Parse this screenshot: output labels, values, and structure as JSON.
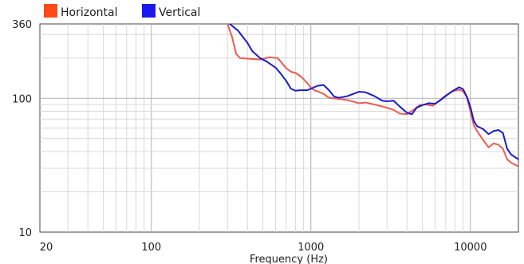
{
  "chart_data": {
    "type": "line",
    "title": "",
    "xlabel": "Frequency (Hz)",
    "ylabel": "",
    "xscale": "log",
    "yscale": "log",
    "xlim": [
      20,
      20000
    ],
    "ylim": [
      10,
      360
    ],
    "x_ticks": [
      {
        "value": 20,
        "label": "20"
      },
      {
        "value": 100,
        "label": "100"
      },
      {
        "value": 1000,
        "label": "1000"
      },
      {
        "value": 10000,
        "label": "10000"
      }
    ],
    "y_ticks": [
      {
        "value": 360,
        "label": "360"
      },
      {
        "value": 100,
        "label": "100"
      },
      {
        "value": 10,
        "label": "10"
      }
    ],
    "grid": true,
    "legend_position": "top-left",
    "series": [
      {
        "name": "Horizontal",
        "color": "#f05a50",
        "legend_color": "#ff4a1a",
        "points": [
          [
            300,
            360
          ],
          [
            320,
            290
          ],
          [
            340,
            215
          ],
          [
            360,
            200
          ],
          [
            400,
            198
          ],
          [
            480,
            195
          ],
          [
            550,
            203
          ],
          [
            620,
            200
          ],
          [
            700,
            168
          ],
          [
            750,
            158
          ],
          [
            800,
            155
          ],
          [
            870,
            145
          ],
          [
            950,
            130
          ],
          [
            1000,
            120
          ],
          [
            1050,
            115
          ],
          [
            1100,
            113
          ],
          [
            1200,
            108
          ],
          [
            1300,
            101
          ],
          [
            1500,
            99
          ],
          [
            1700,
            97
          ],
          [
            2000,
            92
          ],
          [
            2200,
            93
          ],
          [
            2500,
            90
          ],
          [
            2800,
            87
          ],
          [
            3000,
            85
          ],
          [
            3300,
            82
          ],
          [
            3600,
            77
          ],
          [
            4000,
            76
          ],
          [
            4400,
            82
          ],
          [
            4800,
            89
          ],
          [
            5300,
            90
          ],
          [
            5800,
            88
          ],
          [
            6300,
            95
          ],
          [
            7000,
            105
          ],
          [
            7700,
            113
          ],
          [
            8500,
            116
          ],
          [
            9000,
            113
          ],
          [
            9500,
            102
          ],
          [
            10000,
            80
          ],
          [
            10500,
            63
          ],
          [
            11000,
            57
          ],
          [
            12000,
            49
          ],
          [
            13000,
            43
          ],
          [
            14000,
            46
          ],
          [
            15000,
            45
          ],
          [
            16000,
            42
          ],
          [
            17000,
            35
          ],
          [
            18000,
            33
          ],
          [
            20000,
            31
          ]
        ]
      },
      {
        "name": "Vertical",
        "color": "#1a1ad0",
        "legend_color": "#1a1aee",
        "points": [
          [
            310,
            360
          ],
          [
            350,
            320
          ],
          [
            400,
            260
          ],
          [
            430,
            225
          ],
          [
            480,
            200
          ],
          [
            530,
            188
          ],
          [
            600,
            170
          ],
          [
            650,
            152
          ],
          [
            700,
            135
          ],
          [
            750,
            118
          ],
          [
            800,
            114
          ],
          [
            850,
            115
          ],
          [
            950,
            115
          ],
          [
            1000,
            118
          ],
          [
            1100,
            124
          ],
          [
            1200,
            126
          ],
          [
            1300,
            115
          ],
          [
            1400,
            103
          ],
          [
            1500,
            101
          ],
          [
            1700,
            104
          ],
          [
            2000,
            112
          ],
          [
            2200,
            111
          ],
          [
            2500,
            104
          ],
          [
            2800,
            96
          ],
          [
            3000,
            95
          ],
          [
            3300,
            96
          ],
          [
            3600,
            87
          ],
          [
            4000,
            78
          ],
          [
            4300,
            76
          ],
          [
            4600,
            85
          ],
          [
            5000,
            89
          ],
          [
            5500,
            92
          ],
          [
            6000,
            91
          ],
          [
            6500,
            97
          ],
          [
            7000,
            104
          ],
          [
            7700,
            113
          ],
          [
            8500,
            121
          ],
          [
            9000,
            117
          ],
          [
            9500,
            103
          ],
          [
            10000,
            86
          ],
          [
            10500,
            68
          ],
          [
            11000,
            62
          ],
          [
            12000,
            59
          ],
          [
            13000,
            54
          ],
          [
            14000,
            57
          ],
          [
            15000,
            58
          ],
          [
            16000,
            55
          ],
          [
            17000,
            42
          ],
          [
            18000,
            38
          ],
          [
            20000,
            35
          ]
        ]
      }
    ]
  }
}
